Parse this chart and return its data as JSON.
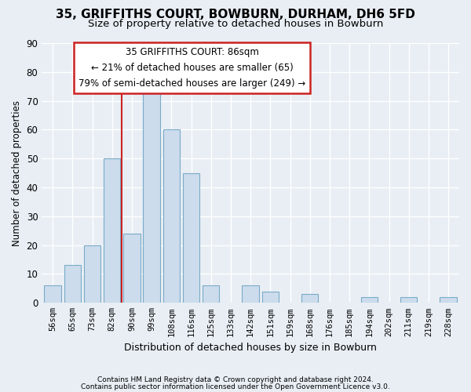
{
  "title": "35, GRIFFITHS COURT, BOWBURN, DURHAM, DH6 5FD",
  "subtitle": "Size of property relative to detached houses in Bowburn",
  "xlabel": "Distribution of detached houses by size in Bowburn",
  "ylabel": "Number of detached properties",
  "categories": [
    "56sqm",
    "65sqm",
    "73sqm",
    "82sqm",
    "90sqm",
    "99sqm",
    "108sqm",
    "116sqm",
    "125sqm",
    "133sqm",
    "142sqm",
    "151sqm",
    "159sqm",
    "168sqm",
    "176sqm",
    "185sqm",
    "194sqm",
    "202sqm",
    "211sqm",
    "219sqm",
    "228sqm"
  ],
  "values": [
    6,
    13,
    20,
    50,
    24,
    73,
    60,
    45,
    6,
    0,
    6,
    4,
    0,
    3,
    0,
    0,
    2,
    0,
    2,
    0,
    2
  ],
  "bar_color": "#ccdcec",
  "bar_edge_color": "#7aaac8",
  "ylim": [
    0,
    90
  ],
  "yticks": [
    0,
    10,
    20,
    30,
    40,
    50,
    60,
    70,
    80,
    90
  ],
  "annotation_title": "35 GRIFFITHS COURT: 86sqm",
  "annotation_line1": "← 21% of detached houses are smaller (65)",
  "annotation_line2": "79% of semi-detached houses are larger (249) →",
  "footer1": "Contains HM Land Registry data © Crown copyright and database right 2024.",
  "footer2": "Contains public sector information licensed under the Open Government Licence v3.0.",
  "background_color": "#e8eef4",
  "grid_color": "#ffffff",
  "redline_index": 4
}
